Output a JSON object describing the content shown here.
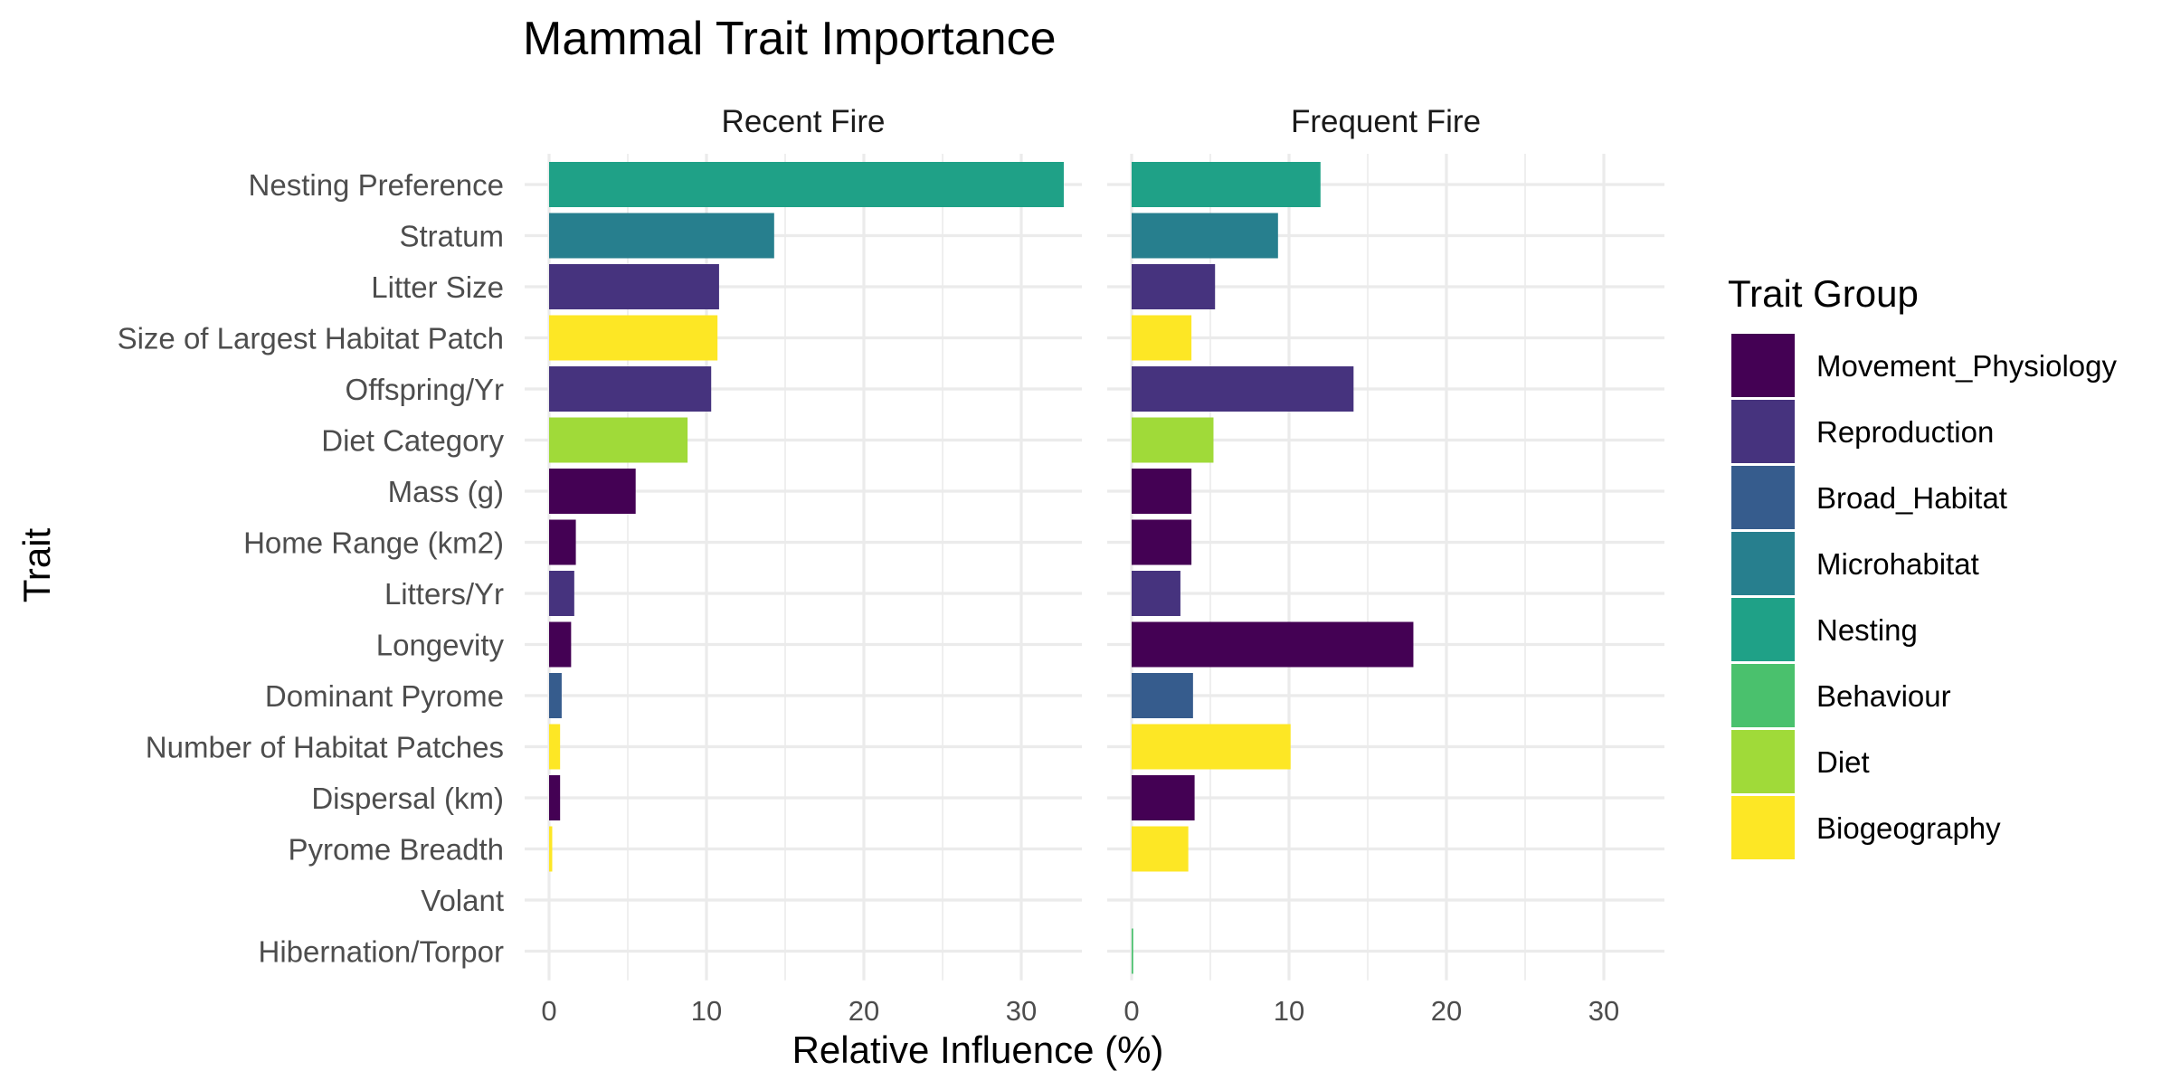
{
  "chart_data": {
    "type": "bar",
    "orientation": "horizontal",
    "title": "Mammal Trait Importance",
    "xlabel": "Relative Influence (%)",
    "ylabel": "Trait",
    "xlim": [
      0,
      34
    ],
    "xticks": [
      0,
      10,
      20,
      30
    ],
    "grid": true,
    "legend_position": "right",
    "categories": [
      "Nesting Preference",
      "Stratum",
      "Litter Size",
      "Size of Largest Habitat Patch",
      "Offspring/Yr",
      "Diet Category",
      "Mass (g)",
      "Home Range (km2)",
      "Litters/Yr",
      "Longevity",
      "Dominant Pyrome",
      "Number of Habitat Patches",
      "Dispersal (km)",
      "Pyrome Breadth",
      "Volant",
      "Hibernation/Torpor"
    ],
    "category_groups": [
      "Nesting",
      "Microhabitat",
      "Reproduction",
      "Biogeography",
      "Reproduction",
      "Diet",
      "Movement_Physiology",
      "Movement_Physiology",
      "Reproduction",
      "Movement_Physiology",
      "Broad_Habitat",
      "Biogeography",
      "Movement_Physiology",
      "Biogeography",
      "Movement_Physiology",
      "Behaviour"
    ],
    "panels": [
      {
        "name": "Recent Fire",
        "values": [
          32.7,
          14.3,
          10.8,
          10.7,
          10.3,
          8.8,
          5.5,
          1.7,
          1.6,
          1.4,
          0.8,
          0.7,
          0.7,
          0.2,
          0.0,
          0.0
        ]
      },
      {
        "name": "Frequent Fire",
        "values": [
          12.0,
          9.3,
          5.3,
          3.8,
          14.1,
          5.2,
          3.8,
          3.8,
          3.1,
          17.9,
          3.9,
          10.1,
          4.0,
          3.6,
          0.0,
          0.1
        ]
      }
    ],
    "legend": {
      "title": "Trait Group",
      "entries": [
        {
          "label": "Movement_Physiology",
          "color": "#440154"
        },
        {
          "label": "Reproduction",
          "color": "#46337E"
        },
        {
          "label": "Broad_Habitat",
          "color": "#365C8D"
        },
        {
          "label": "Microhabitat",
          "color": "#277F8E"
        },
        {
          "label": "Nesting",
          "color": "#1FA187"
        },
        {
          "label": "Behaviour",
          "color": "#4AC16D"
        },
        {
          "label": "Diet",
          "color": "#A0DA39"
        },
        {
          "label": "Biogeography",
          "color": "#FDE725"
        }
      ]
    }
  }
}
